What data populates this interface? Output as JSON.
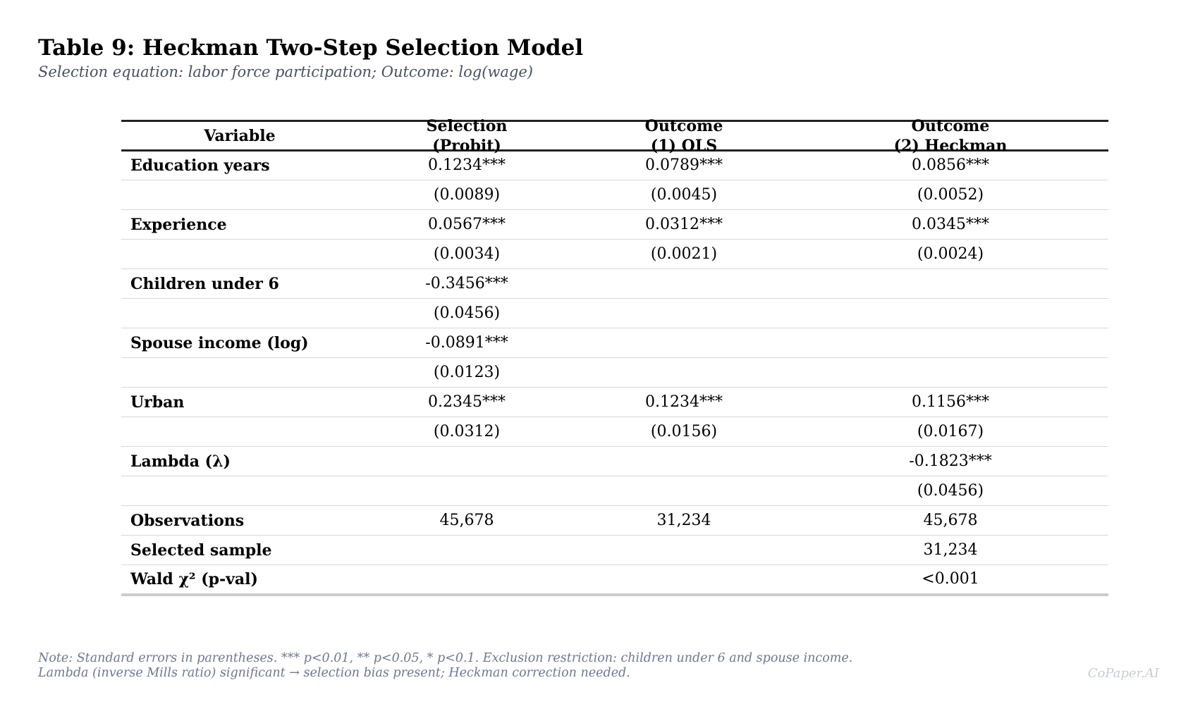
{
  "title": "Table 9: Heckman Two-Step Selection Model",
  "subtitle": "Selection equation: labor force participation; Outcome: log(wage)",
  "table": {
    "headers": [
      {
        "lines": [
          "Variable"
        ]
      },
      {
        "lines": [
          "Selection",
          "(Probit)"
        ]
      },
      {
        "lines": [
          "Outcome",
          "(1) OLS"
        ]
      },
      {
        "lines": [
          "Outcome",
          "(2) Heckman"
        ]
      }
    ],
    "rows": [
      {
        "variable": "Education years",
        "cells": [
          "0.1234***",
          "0.0789***",
          "0.0856***"
        ]
      },
      {
        "variable": "",
        "cells": [
          "(0.0089)",
          "(0.0045)",
          "(0.0052)"
        ]
      },
      {
        "variable": "Experience",
        "cells": [
          "0.0567***",
          "0.0312***",
          "0.0345***"
        ]
      },
      {
        "variable": "",
        "cells": [
          "(0.0034)",
          "(0.0021)",
          "(0.0024)"
        ]
      },
      {
        "variable": "Children under 6",
        "cells": [
          "-0.3456***",
          "",
          ""
        ]
      },
      {
        "variable": "",
        "cells": [
          "(0.0456)",
          "",
          ""
        ]
      },
      {
        "variable": "Spouse income (log)",
        "cells": [
          "-0.0891***",
          "",
          ""
        ]
      },
      {
        "variable": "",
        "cells": [
          "(0.0123)",
          "",
          ""
        ]
      },
      {
        "variable": "Urban",
        "cells": [
          "0.2345***",
          "0.1234***",
          "0.1156***"
        ]
      },
      {
        "variable": "",
        "cells": [
          "(0.0312)",
          "(0.0156)",
          "(0.0167)"
        ]
      },
      {
        "variable": "Lambda (λ)",
        "cells": [
          "",
          "",
          "-0.1823***"
        ]
      },
      {
        "variable": "",
        "cells": [
          "",
          "",
          "(0.0456)"
        ]
      },
      {
        "variable": "Observations",
        "cells": [
          "45,678",
          "31,234",
          "45,678"
        ]
      },
      {
        "variable": "Selected sample",
        "cells": [
          "",
          "",
          "31,234"
        ]
      },
      {
        "variable": "Wald χ² (p-val)",
        "cells": [
          "",
          "",
          "<0.001"
        ]
      }
    ]
  },
  "note": {
    "line1": "Note: Standard errors in parentheses. *** p<0.01, ** p<0.05, * p<0.1. Exclusion restriction: children under 6 and spouse income.",
    "line2": "Lambda (inverse Mills ratio) significant → selection bias present; Heckman correction needed."
  },
  "watermark": "CoPaper.AI"
}
